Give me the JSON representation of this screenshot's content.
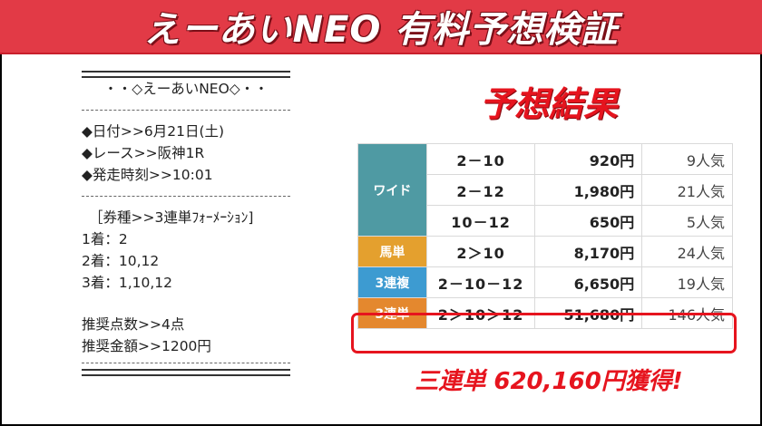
{
  "banner": {
    "title": "えーあいNEO 有料予想検証"
  },
  "note": {
    "header": "・・◇えーあいNEO◇・・",
    "date": "◆日付>>6月21日(土)",
    "race": "◆レース>>阪神1R",
    "time": "◆発走時刻>>10:01",
    "bet_type": "［券種>>3連単ﾌｫｰﾒｰｼｮﾝ]",
    "first": "1着：2",
    "second": "2着：10,12",
    "third": "3着：1,10,12",
    "points": "推奨点数>>4点",
    "amount": "推奨金額>>1200円"
  },
  "result_heading": "予想結果",
  "colors": {
    "wide": "#4f9aa3",
    "umatan": "#e4a02e",
    "sanrenpuku": "#3d9bd1",
    "sanrentan": "#e4882e",
    "accent": "#e6141e"
  },
  "results": {
    "wide": {
      "label": "ワイド",
      "rows": [
        {
          "combo": "2－10",
          "payout": "920円",
          "pop": "9人気"
        },
        {
          "combo": "2－12",
          "payout": "1,980円",
          "pop": "21人気"
        },
        {
          "combo": "10－12",
          "payout": "650円",
          "pop": "5人気"
        }
      ]
    },
    "umatan": {
      "label": "馬単",
      "combo": "2＞10",
      "payout": "8,170円",
      "pop": "24人気"
    },
    "sanrenpuku": {
      "label": "3連複",
      "combo": "2－10－12",
      "payout": "6,650円",
      "pop": "19人気"
    },
    "sanrentan": {
      "label": "3連単",
      "combo": "2＞10＞12",
      "payout": "51,680円",
      "pop": "146人気"
    }
  },
  "profit": "三連単 620,160円獲得!"
}
